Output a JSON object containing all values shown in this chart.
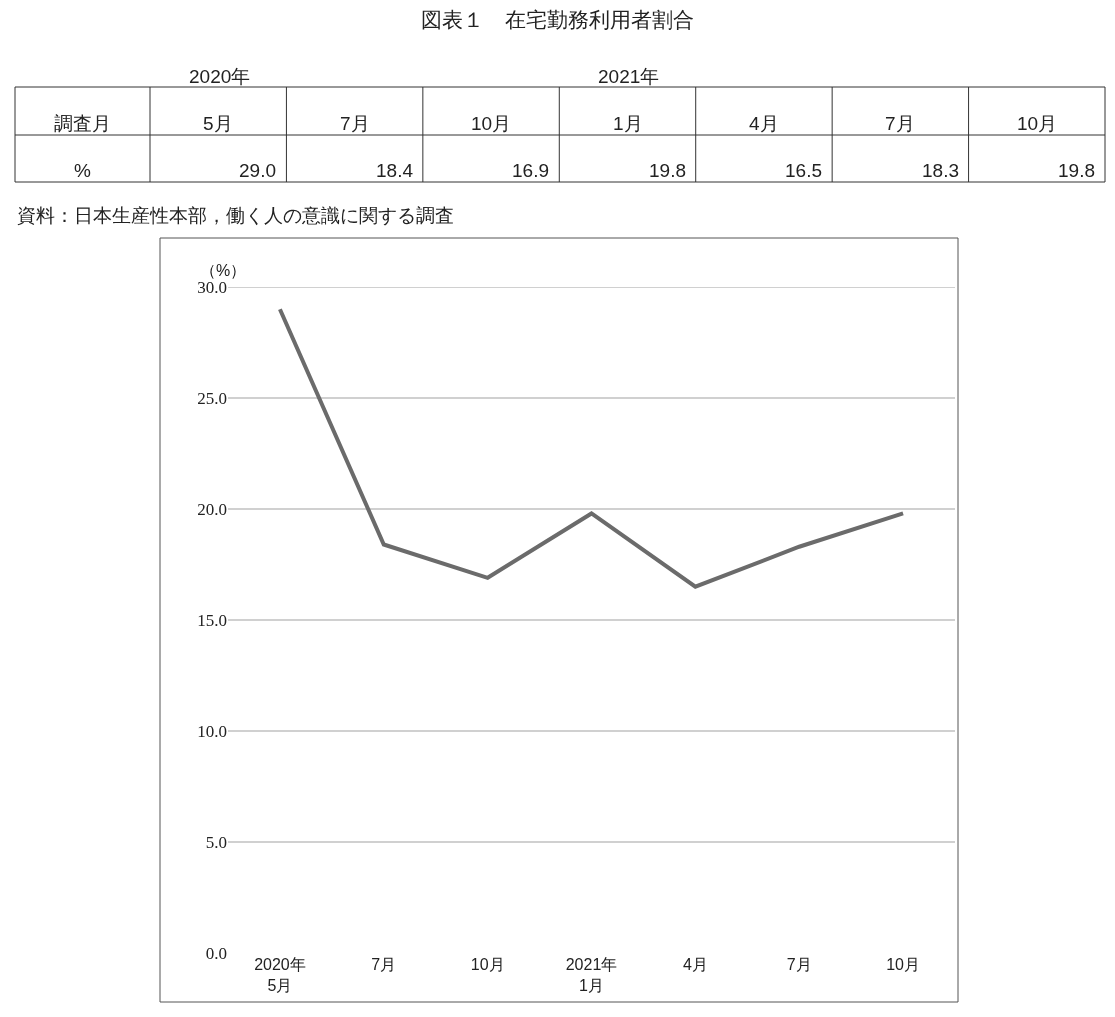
{
  "chart_data": {
    "type": "line",
    "title": "図表１　在宅勤務利用者割合",
    "ylabel": "（%）",
    "categories": [
      "2020年\n5月",
      "7月",
      "10月",
      "2021年\n1月",
      "4月",
      "7月",
      "10月"
    ],
    "series": [
      {
        "color": "#6b6b6b",
        "values": [
          29.0,
          18.4,
          16.9,
          19.8,
          16.5,
          18.3,
          19.8
        ]
      }
    ],
    "annotations": [
      "2020年",
      "2021年",
      "調査月",
      "5月",
      "7月",
      "10月",
      "1月",
      "4月",
      "7月",
      "10月",
      "%",
      "29.0",
      "18.4",
      "16.9",
      "19.8",
      "16.5",
      "18.3",
      "19.8",
      "資料：日本生産性本部，働く人の意識に関する調査"
    ],
    "ylim": [
      0,
      30
    ],
    "yticks": [
      {
        "value": 0,
        "label": "0.0"
      },
      {
        "value": 5,
        "label": "5.0"
      },
      {
        "value": 10,
        "label": "10.0"
      },
      {
        "value": 15,
        "label": "15.0"
      },
      {
        "value": 20,
        "label": "20.0"
      },
      {
        "value": 25,
        "label": "25.0"
      },
      {
        "value": 30,
        "label": "30.0"
      }
    ],
    "grid": "y",
    "marker": "none",
    "line_style": "solid"
  }
}
